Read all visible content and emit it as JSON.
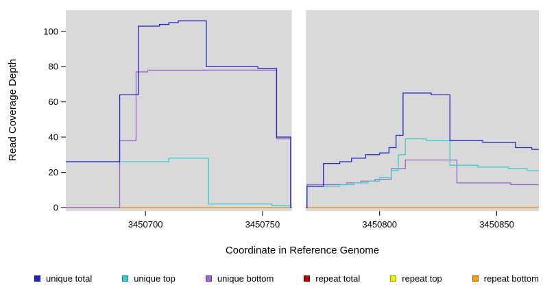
{
  "chart_data": {
    "type": "line",
    "style": "step",
    "title": "",
    "xlabel": "Coordinate in Reference Genome",
    "ylabel": "Read Coverage Depth",
    "xlim": [
      3450666,
      3450868
    ],
    "ylim": [
      0,
      110
    ],
    "x_ticks": [
      3450700,
      3450750,
      3450800,
      3450850
    ],
    "y_ticks": [
      0,
      20,
      40,
      60,
      80,
      100
    ],
    "grid": false,
    "plot_background": "#d9d9d9",
    "gap_region": {
      "start": 3450762.5,
      "end": 3450768.5
    },
    "legend_position": "bottom",
    "series": [
      {
        "name": "repeat total",
        "color": "#bb0000",
        "steps": [
          [
            3450666,
            0
          ]
        ]
      },
      {
        "name": "repeat top",
        "color": "#f0f000",
        "steps": [
          [
            3450666,
            0
          ]
        ]
      },
      {
        "name": "repeat bottom",
        "color": "#ff9900",
        "steps": [
          [
            3450666,
            0
          ]
        ]
      },
      {
        "name": "unique bottom",
        "color": "#9966cc",
        "steps": [
          [
            3450666,
            0
          ],
          [
            3450689,
            38
          ],
          [
            3450696,
            77
          ],
          [
            3450701,
            78
          ],
          [
            3450756,
            39
          ],
          [
            3450762,
            0
          ],
          [
            3450769,
            13
          ],
          [
            3450786,
            14
          ],
          [
            3450792,
            15
          ],
          [
            3450798,
            16
          ],
          [
            3450805,
            22
          ],
          [
            3450811,
            27
          ],
          [
            3450833,
            14
          ],
          [
            3450856,
            13
          ]
        ]
      },
      {
        "name": "unique top",
        "color": "#35cfcf",
        "steps": [
          [
            3450666,
            26
          ],
          [
            3450710,
            28
          ],
          [
            3450727,
            2
          ],
          [
            3450754,
            1
          ],
          [
            3450762,
            0
          ],
          [
            3450769,
            12
          ],
          [
            3450783,
            13
          ],
          [
            3450789,
            14
          ],
          [
            3450795,
            15
          ],
          [
            3450800,
            17
          ],
          [
            3450805,
            21
          ],
          [
            3450808,
            30
          ],
          [
            3450811,
            39
          ],
          [
            3450820,
            38
          ],
          [
            3450830,
            24
          ],
          [
            3450842,
            23
          ],
          [
            3450855,
            22
          ],
          [
            3450863,
            21
          ]
        ]
      },
      {
        "name": "unique total",
        "color": "#2222cc",
        "steps": [
          [
            3450666,
            26
          ],
          [
            3450689,
            64
          ],
          [
            3450697,
            103
          ],
          [
            3450706,
            104
          ],
          [
            3450710,
            105
          ],
          [
            3450714,
            106
          ],
          [
            3450726,
            80
          ],
          [
            3450748,
            79
          ],
          [
            3450756,
            40
          ],
          [
            3450762,
            0
          ],
          [
            3450769,
            12
          ],
          [
            3450776,
            25
          ],
          [
            3450783,
            26
          ],
          [
            3450788,
            28
          ],
          [
            3450794,
            30
          ],
          [
            3450800,
            31
          ],
          [
            3450804,
            34
          ],
          [
            3450807,
            41
          ],
          [
            3450810,
            65
          ],
          [
            3450822,
            64
          ],
          [
            3450830,
            38
          ],
          [
            3450844,
            37
          ],
          [
            3450858,
            34
          ],
          [
            3450865,
            33
          ]
        ]
      }
    ],
    "legend": [
      {
        "label": "unique total",
        "color": "#2222cc"
      },
      {
        "label": "unique top",
        "color": "#35cfcf"
      },
      {
        "label": "unique bottom",
        "color": "#9966cc"
      },
      {
        "label": "repeat total",
        "color": "#bb0000"
      },
      {
        "label": "repeat top",
        "color": "#f0f000"
      },
      {
        "label": "repeat bottom",
        "color": "#ff9900"
      }
    ]
  }
}
